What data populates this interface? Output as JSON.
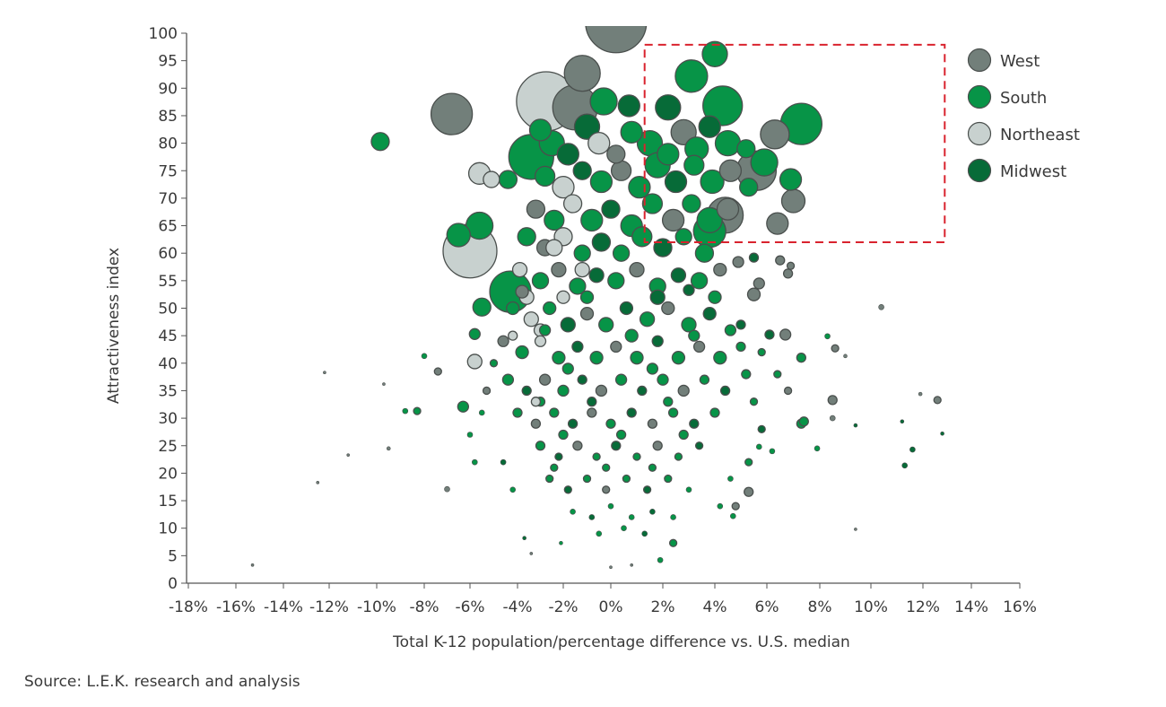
{
  "chart_data": {
    "type": "scatter",
    "subtype": "bubble",
    "title": "",
    "xlabel": "Total K-12 population/percentage difference vs. U.S. median",
    "ylabel": "Attractiveness index",
    "xlim": [
      -18,
      16
    ],
    "ylim": [
      0,
      100
    ],
    "x_ticks": [
      "-18%",
      "-16%",
      "-14%",
      "-12%",
      "-10%",
      "-8%",
      "-6%",
      "-4%",
      "-2%",
      "0%",
      "2%",
      "4%",
      "6%",
      "8%",
      "10%",
      "12%",
      "14%",
      "16%"
    ],
    "x_tick_values": [
      -18,
      -16,
      -14,
      -12,
      -10,
      -8,
      -6,
      -4,
      -2,
      0,
      2,
      4,
      6,
      8,
      10,
      12,
      14,
      16
    ],
    "y_ticks": [
      "0",
      "5",
      "10",
      "15",
      "20",
      "25",
      "30",
      "35",
      "40",
      "45",
      "50",
      "55",
      "60",
      "65",
      "70",
      "75",
      "80",
      "85",
      "90",
      "95",
      "100"
    ],
    "grid": false,
    "legend_position": "top-right",
    "series": [
      {
        "name": "West",
        "color": "#727f7a"
      },
      {
        "name": "South",
        "color": "#079447"
      },
      {
        "name": "Northeast",
        "color": "#c8d1cf"
      },
      {
        "name": "Midwest",
        "color": "#076b38"
      }
    ],
    "point_format": "[x_percent, attractiveness_index, relative_bubble_size, series_index]",
    "points": [
      [
        0.2,
        102,
        34,
        0
      ],
      [
        -6.8,
        85.3,
        23,
        0
      ],
      [
        -9.85,
        80.3,
        10,
        1
      ],
      [
        -2.75,
        87.6,
        33,
        2
      ],
      [
        -1.2,
        92.7,
        20,
        0
      ],
      [
        -1.5,
        86.5,
        25,
        0
      ],
      [
        4.0,
        96.2,
        14,
        1
      ],
      [
        3.1,
        92.2,
        18,
        1
      ],
      [
        4.3,
        86.8,
        22,
        1
      ],
      [
        7.3,
        83.5,
        23,
        1
      ],
      [
        6.3,
        81.6,
        16,
        0
      ],
      [
        5.6,
        75,
        22,
        0
      ],
      [
        5.9,
        76.5,
        15,
        1
      ],
      [
        7,
        69.5,
        13,
        0
      ],
      [
        6.9,
        73.4,
        12,
        1
      ],
      [
        6.4,
        65.4,
        12,
        0
      ],
      [
        -3.4,
        77.5,
        25,
        1
      ],
      [
        -6,
        60.4,
        30,
        2
      ],
      [
        -5.6,
        65,
        15,
        1
      ],
      [
        -4.3,
        53,
        23,
        1
      ],
      [
        -6.5,
        63.3,
        13,
        1
      ],
      [
        -5.6,
        74.5,
        12,
        2
      ],
      [
        -5.1,
        73.4,
        9,
        2
      ],
      [
        -4.4,
        73.4,
        10,
        1
      ],
      [
        -5.5,
        50.2,
        10,
        1
      ],
      [
        -3,
        82.4,
        12,
        1
      ],
      [
        -0.3,
        87.6,
        15,
        1
      ],
      [
        4.4,
        66.9,
        20,
        0
      ],
      [
        3.8,
        64,
        18,
        1
      ],
      [
        0.7,
        86.8,
        12,
        3
      ],
      [
        2.2,
        86.5,
        14,
        3
      ],
      [
        -5.8,
        40.3,
        8,
        2
      ],
      [
        -5.8,
        45.3,
        6,
        1
      ],
      [
        -2.5,
        80,
        14,
        1
      ],
      [
        -1.8,
        78,
        12,
        3
      ],
      [
        -1,
        83,
        14,
        3
      ],
      [
        -0.5,
        80,
        12,
        2
      ],
      [
        0.2,
        78,
        10,
        0
      ],
      [
        0.8,
        82,
        12,
        1
      ],
      [
        1.5,
        80,
        14,
        1
      ],
      [
        2.2,
        78,
        12,
        1
      ],
      [
        2.8,
        82,
        14,
        0
      ],
      [
        3.3,
        79,
        13,
        1
      ],
      [
        3.8,
        83,
        12,
        3
      ],
      [
        4.5,
        80,
        14,
        1
      ],
      [
        5.2,
        79,
        10,
        1
      ],
      [
        -2.8,
        74,
        11,
        1
      ],
      [
        -2,
        72,
        12,
        2
      ],
      [
        -1.2,
        75,
        10,
        3
      ],
      [
        -0.4,
        73,
        12,
        1
      ],
      [
        0.4,
        75,
        11,
        0
      ],
      [
        1.1,
        72,
        12,
        1
      ],
      [
        1.8,
        76,
        14,
        1
      ],
      [
        2.5,
        73,
        12,
        3
      ],
      [
        3.2,
        76,
        11,
        1
      ],
      [
        3.9,
        73,
        13,
        1
      ],
      [
        4.6,
        75,
        12,
        0
      ],
      [
        5.3,
        72,
        10,
        1
      ],
      [
        -3.2,
        68,
        10,
        0
      ],
      [
        -2.4,
        66,
        11,
        1
      ],
      [
        -1.6,
        69,
        10,
        2
      ],
      [
        -0.8,
        66,
        12,
        1
      ],
      [
        0,
        68,
        10,
        3
      ],
      [
        0.8,
        65,
        12,
        1
      ],
      [
        1.6,
        69,
        11,
        1
      ],
      [
        2.4,
        66,
        12,
        0
      ],
      [
        3.1,
        69,
        10,
        1
      ],
      [
        3.8,
        66,
        14,
        1
      ],
      [
        4.5,
        68,
        12,
        0
      ],
      [
        -3.6,
        63,
        10,
        1
      ],
      [
        -2.8,
        61,
        9,
        0
      ],
      [
        -2,
        63,
        10,
        2
      ],
      [
        -1.2,
        60,
        9,
        1
      ],
      [
        -0.4,
        62,
        10,
        3
      ],
      [
        0.4,
        60,
        9,
        1
      ],
      [
        1.2,
        63,
        11,
        1
      ],
      [
        2,
        61,
        10,
        3
      ],
      [
        2.8,
        63,
        9,
        1
      ],
      [
        3.6,
        60,
        10,
        1
      ],
      [
        -3.9,
        57,
        8,
        2
      ],
      [
        -3,
        55,
        9,
        1
      ],
      [
        -2.2,
        57,
        8,
        0
      ],
      [
        -1.4,
        54,
        9,
        1
      ],
      [
        -0.6,
        56,
        8,
        3
      ],
      [
        0.2,
        55,
        9,
        1
      ],
      [
        1,
        57,
        8,
        0
      ],
      [
        1.8,
        54,
        9,
        1
      ],
      [
        2.6,
        56,
        8,
        3
      ],
      [
        3.4,
        55,
        9,
        1
      ],
      [
        4.2,
        57,
        7,
        0
      ],
      [
        -4.2,
        50,
        7,
        1
      ],
      [
        -3.4,
        48,
        8,
        2
      ],
      [
        -2.6,
        50,
        7,
        1
      ],
      [
        -1.8,
        47,
        8,
        3
      ],
      [
        -1,
        49,
        7,
        0
      ],
      [
        -0.2,
        47,
        8,
        1
      ],
      [
        0.6,
        50,
        7,
        3
      ],
      [
        1.4,
        48,
        8,
        1
      ],
      [
        2.2,
        50,
        7,
        0
      ],
      [
        3,
        47,
        8,
        1
      ],
      [
        3.8,
        49,
        7,
        3
      ],
      [
        4.6,
        46,
        6,
        1
      ],
      [
        -4.6,
        44,
        6,
        0
      ],
      [
        -3.8,
        42,
        7,
        1
      ],
      [
        -3,
        44,
        6,
        2
      ],
      [
        -2.2,
        41,
        7,
        1
      ],
      [
        -1.4,
        43,
        6,
        3
      ],
      [
        -0.6,
        41,
        7,
        1
      ],
      [
        0.2,
        43,
        6,
        0
      ],
      [
        1,
        41,
        7,
        1
      ],
      [
        1.8,
        44,
        6,
        3
      ],
      [
        2.6,
        41,
        7,
        1
      ],
      [
        3.4,
        43,
        6,
        0
      ],
      [
        4.2,
        41,
        7,
        1
      ],
      [
        5,
        43,
        5,
        1
      ],
      [
        -4.4,
        37,
        6,
        1
      ],
      [
        -3.6,
        35,
        5,
        3
      ],
      [
        -2.8,
        37,
        6,
        0
      ],
      [
        -2,
        35,
        6,
        1
      ],
      [
        -1.2,
        37,
        5,
        3
      ],
      [
        -0.4,
        35,
        6,
        0
      ],
      [
        0.4,
        37,
        6,
        1
      ],
      [
        1.2,
        35,
        5,
        3
      ],
      [
        2,
        37,
        6,
        1
      ],
      [
        2.8,
        35,
        6,
        0
      ],
      [
        3.6,
        37,
        5,
        1
      ],
      [
        4.4,
        35,
        5,
        3
      ],
      [
        -4,
        31,
        5,
        1
      ],
      [
        -3.2,
        29,
        5,
        0
      ],
      [
        -2.4,
        31,
        5,
        1
      ],
      [
        -1.6,
        29,
        5,
        3
      ],
      [
        -0.8,
        31,
        5,
        0
      ],
      [
        0,
        29,
        5,
        1
      ],
      [
        0.8,
        31,
        5,
        3
      ],
      [
        1.6,
        29,
        5,
        0
      ],
      [
        2.4,
        31,
        5,
        1
      ],
      [
        3.2,
        29,
        5,
        3
      ],
      [
        4,
        31,
        5,
        1
      ],
      [
        -3,
        25,
        5,
        1
      ],
      [
        -2.2,
        23,
        4,
        3
      ],
      [
        -1.4,
        25,
        5,
        0
      ],
      [
        -0.6,
        23,
        4,
        1
      ],
      [
        0.2,
        25,
        5,
        3
      ],
      [
        1,
        23,
        4,
        1
      ],
      [
        1.8,
        25,
        5,
        0
      ],
      [
        2.6,
        23,
        4,
        1
      ],
      [
        3.4,
        25,
        4,
        3
      ],
      [
        -2.6,
        19,
        4,
        1
      ],
      [
        -1.8,
        17,
        4,
        3
      ],
      [
        -1,
        19,
        4,
        1
      ],
      [
        -0.2,
        17,
        4,
        0
      ],
      [
        0.6,
        19,
        4,
        1
      ],
      [
        1.4,
        17,
        4,
        3
      ],
      [
        2.2,
        19,
        4,
        1
      ],
      [
        3,
        17,
        3,
        1
      ],
      [
        -1.6,
        13,
        3,
        1
      ],
      [
        -0.8,
        12,
        3,
        3
      ],
      [
        0,
        14,
        3,
        1
      ],
      [
        0.8,
        12,
        3,
        1
      ],
      [
        1.6,
        13,
        3,
        3
      ],
      [
        2.4,
        12,
        3,
        1
      ],
      [
        -0.5,
        9,
        3,
        1
      ],
      [
        0.5,
        10,
        3,
        1
      ],
      [
        1.3,
        9,
        3,
        3
      ],
      [
        -3.8,
        53,
        7,
        0
      ],
      [
        -1,
        52,
        7,
        1
      ],
      [
        1.8,
        52,
        8,
        3
      ],
      [
        4,
        52,
        7,
        1
      ],
      [
        -2.8,
        46,
        6,
        1
      ],
      [
        0.8,
        45,
        7,
        1
      ],
      [
        3.2,
        45,
        6,
        1
      ],
      [
        -1.8,
        39,
        6,
        1
      ],
      [
        1.6,
        39,
        6,
        1
      ],
      [
        -0.8,
        33,
        5,
        3
      ],
      [
        2.2,
        33,
        5,
        1
      ],
      [
        -3,
        33,
        5,
        1
      ],
      [
        0.4,
        27,
        5,
        1
      ],
      [
        -2,
        27,
        5,
        1
      ],
      [
        2.8,
        27,
        5,
        1
      ],
      [
        -0.2,
        21,
        4,
        1
      ],
      [
        1.6,
        21,
        4,
        1
      ],
      [
        -2.4,
        21,
        4,
        1
      ],
      [
        -3.6,
        52,
        8,
        2
      ],
      [
        -3,
        46,
        7,
        2
      ],
      [
        -2,
        52,
        7,
        2
      ],
      [
        -4.2,
        45,
        5,
        2
      ],
      [
        -2.4,
        61,
        9,
        2
      ],
      [
        -1.2,
        57,
        8,
        2
      ],
      [
        -3.2,
        33,
        5,
        2
      ],
      [
        -5,
        40,
        4,
        1
      ],
      [
        -5.3,
        35,
        4,
        0
      ],
      [
        -5.5,
        31,
        3,
        1
      ],
      [
        -6,
        27,
        3,
        1
      ],
      [
        -5.8,
        22,
        3,
        1
      ],
      [
        -4.6,
        22,
        3,
        3
      ],
      [
        -4.2,
        17,
        3,
        1
      ],
      [
        5.2,
        38,
        5,
        1
      ],
      [
        5.5,
        33,
        4,
        1
      ],
      [
        5.8,
        28,
        4,
        3
      ],
      [
        5.3,
        22,
        4,
        1
      ],
      [
        4.6,
        19,
        3,
        1
      ],
      [
        4.2,
        14,
        3,
        1
      ],
      [
        6.2,
        24,
        3,
        1
      ],
      [
        6.8,
        35,
        4,
        0
      ],
      [
        7.3,
        29,
        5,
        1
      ],
      [
        8.5,
        30,
        3,
        0
      ],
      [
        5,
        47,
        5,
        3
      ],
      [
        5.8,
        42,
        4,
        1
      ],
      [
        4.8,
        14,
        4,
        0
      ],
      [
        -15.3,
        3.3,
        1.5,
        0
      ],
      [
        -12.5,
        18.3,
        1.5,
        0
      ],
      [
        -12.2,
        38.3,
        1.5,
        0
      ],
      [
        -11.2,
        23.3,
        1.5,
        0
      ],
      [
        -9.5,
        24.5,
        2,
        0
      ],
      [
        -9.7,
        36.2,
        1.5,
        0
      ],
      [
        -8.8,
        31.3,
        3,
        1
      ],
      [
        -8.3,
        31.3,
        4,
        1
      ],
      [
        -8,
        41.3,
        3,
        1
      ],
      [
        -7.4,
        38.5,
        4,
        0
      ],
      [
        -7,
        17.1,
        3,
        0
      ],
      [
        -6.3,
        32.1,
        6,
        1
      ],
      [
        9.4,
        9.8,
        1.5,
        0
      ],
      [
        10.4,
        50.2,
        3,
        0
      ],
      [
        11.3,
        21.4,
        3,
        3
      ],
      [
        11.6,
        24.3,
        3,
        3
      ],
      [
        11.2,
        29.4,
        2,
        3
      ],
      [
        11.9,
        34.4,
        2,
        0
      ],
      [
        12.6,
        33.3,
        4,
        0
      ],
      [
        12.8,
        27.2,
        2,
        3
      ],
      [
        7.4,
        29.4,
        5,
        1
      ],
      [
        6.4,
        38,
        4,
        1
      ],
      [
        7.3,
        41,
        5,
        1
      ],
      [
        6.7,
        45.2,
        6,
        0
      ],
      [
        6.1,
        45.2,
        5,
        3
      ],
      [
        8.6,
        42.7,
        4,
        0
      ],
      [
        8.3,
        44.9,
        3,
        1
      ],
      [
        9,
        41.3,
        2,
        0
      ],
      [
        8.5,
        33.3,
        5,
        0
      ],
      [
        7.9,
        24.5,
        3,
        1
      ],
      [
        9.4,
        28.7,
        2,
        3
      ],
      [
        5.7,
        24.8,
        3,
        1
      ],
      [
        5.3,
        16.6,
        5,
        0
      ],
      [
        4.7,
        12.2,
        3,
        1
      ],
      [
        2.4,
        7.3,
        4,
        1
      ],
      [
        1.9,
        4.2,
        3,
        1
      ],
      [
        0,
        2.9,
        1.5,
        0
      ],
      [
        0.8,
        3.3,
        1.5,
        0
      ],
      [
        -2.1,
        7.3,
        2,
        1
      ],
      [
        -3.7,
        8.2,
        2,
        3
      ],
      [
        -3.4,
        5.4,
        1.5,
        0
      ],
      [
        5.5,
        52.5,
        7,
        0
      ],
      [
        5.7,
        54.5,
        6,
        0
      ],
      [
        6.5,
        58.7,
        5,
        0
      ],
      [
        6.8,
        56.3,
        5,
        0
      ],
      [
        6.9,
        57.7,
        4,
        0
      ],
      [
        5.5,
        59.2,
        5,
        3
      ],
      [
        4.9,
        58.4,
        6,
        0
      ],
      [
        3,
        53.3,
        6,
        3
      ]
    ],
    "highlight_box": {
      "x": [
        1.3,
        12.9
      ],
      "y": [
        62,
        97.9
      ],
      "color": "#d9232e",
      "style": "dashed"
    }
  },
  "source": "Source: L.E.K. research and analysis"
}
